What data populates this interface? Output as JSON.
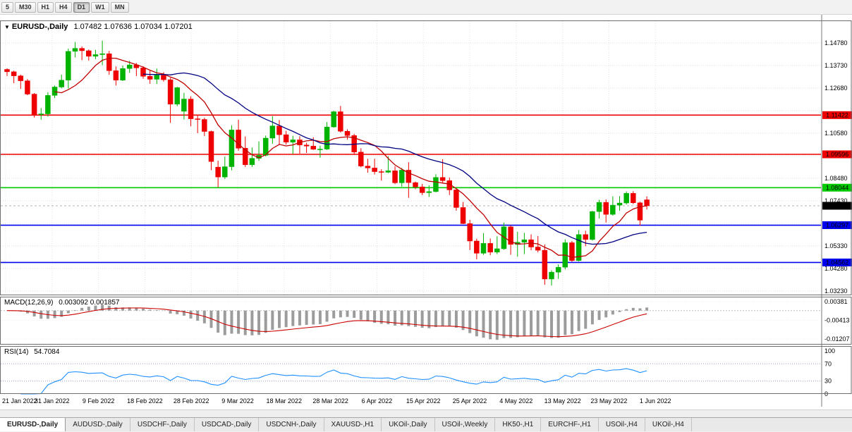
{
  "toolbar": {
    "timeframes": [
      {
        "label": "5",
        "active": false
      },
      {
        "label": "M30",
        "active": false
      },
      {
        "label": "H1",
        "active": false
      },
      {
        "label": "H4",
        "active": false
      },
      {
        "label": "D1",
        "active": true
      },
      {
        "label": "W1",
        "active": false
      },
      {
        "label": "MN",
        "active": false
      }
    ]
  },
  "chart": {
    "symbol": "EURUSD-,Daily",
    "open": "1.07482",
    "high": "1.07636",
    "low": "1.07034",
    "close": "1.07201"
  },
  "chart_data": {
    "type": "candlestick",
    "symbol": "EURUSD-,Daily",
    "up_color": "#00b300",
    "down_color": "#ee0000",
    "grid_top": 1.1478,
    "grid_step": 0.0105,
    "grid_lines": 12,
    "price_axis_ticks": [
      "1.14780",
      "1.13730",
      "1.12680",
      "1.10580",
      "1.08480",
      "1.07430",
      "1.05330",
      "1.04280",
      "1.03230"
    ],
    "hlines": [
      {
        "price": 1.11422,
        "label": "1.11422",
        "color": "#ee0000"
      },
      {
        "price": 1.09596,
        "label": "1.09596",
        "color": "#ee0000"
      },
      {
        "price": 1.08044,
        "label": "1.08044",
        "color": "#00cc00"
      },
      {
        "price": 1.06297,
        "label": "1.06297",
        "color": "#0000ee"
      },
      {
        "price": 1.04562,
        "label": "1.04562",
        "color": "#0000ee"
      }
    ],
    "current_price": {
      "value": 1.07201,
      "label": "1.07201",
      "bg": "#000000"
    },
    "moving_averages": [
      {
        "period": 8,
        "color": "#c00000"
      },
      {
        "period": 21,
        "color": "#000080"
      }
    ],
    "x_labels": [
      "21 Jan 2022",
      "31 Jan 2022",
      "9 Feb 2022",
      "18 Feb 2022",
      "28 Feb 2022",
      "9 Mar 2022",
      "18 Mar 2022",
      "28 Mar 2022",
      "6 Apr 2022",
      "15 Apr 2022",
      "25 Apr 2022",
      "4 May 2022",
      "13 May 2022",
      "23 May 2022",
      "1 Jun 2022"
    ],
    "candles": [
      [
        1.1355,
        1.136,
        1.1324,
        1.1344
      ],
      [
        1.1344,
        1.1349,
        1.1291,
        1.1325
      ],
      [
        1.1325,
        1.1331,
        1.1264,
        1.1302
      ],
      [
        1.1302,
        1.131,
        1.1235,
        1.124
      ],
      [
        1.124,
        1.1245,
        1.1131,
        1.1145
      ],
      [
        1.1145,
        1.1175,
        1.1121,
        1.1148
      ],
      [
        1.1148,
        1.1248,
        1.1135,
        1.1234
      ],
      [
        1.1234,
        1.128,
        1.1222,
        1.1273
      ],
      [
        1.1273,
        1.1331,
        1.1267,
        1.1305
      ],
      [
        1.1305,
        1.1452,
        1.1266,
        1.1439
      ],
      [
        1.1439,
        1.1483,
        1.1411,
        1.1453
      ],
      [
        1.1453,
        1.1462,
        1.1398,
        1.1442
      ],
      [
        1.1442,
        1.1448,
        1.1396,
        1.1416
      ],
      [
        1.1416,
        1.1446,
        1.1403,
        1.1424
      ],
      [
        1.1424,
        1.1489,
        1.1375,
        1.1428
      ],
      [
        1.1428,
        1.1441,
        1.133,
        1.1349
      ],
      [
        1.1349,
        1.1369,
        1.128,
        1.1305
      ],
      [
        1.1305,
        1.1373,
        1.1301,
        1.1359
      ],
      [
        1.1359,
        1.1395,
        1.1339,
        1.1376
      ],
      [
        1.1376,
        1.1385,
        1.1324,
        1.1362
      ],
      [
        1.1362,
        1.137,
        1.1312,
        1.1323
      ],
      [
        1.1323,
        1.1349,
        1.1288,
        1.1309
      ],
      [
        1.1309,
        1.1359,
        1.1287,
        1.1328
      ],
      [
        1.1328,
        1.1342,
        1.1298,
        1.1307
      ],
      [
        1.1307,
        1.1316,
        1.1106,
        1.1193
      ],
      [
        1.1193,
        1.1274,
        1.1184,
        1.127
      ],
      [
        1.116,
        1.1246,
        1.1122,
        1.1217
      ],
      [
        1.1217,
        1.123,
        1.109,
        1.1125
      ],
      [
        1.1125,
        1.1145,
        1.1058,
        1.1122
      ],
      [
        1.1122,
        1.113,
        1.1045,
        1.1066
      ],
      [
        1.1066,
        1.107,
        1.0886,
        1.0926
      ],
      [
        1.09,
        1.093,
        1.0806,
        1.0854
      ],
      [
        1.0854,
        1.0949,
        1.0845,
        1.0902
      ],
      [
        1.0902,
        1.1095,
        1.0885,
        1.1073
      ],
      [
        1.1073,
        1.1121,
        1.0977,
        1.0988
      ],
      [
        1.0988,
        1.1043,
        1.0901,
        1.0911
      ],
      [
        1.0911,
        1.0991,
        1.0901,
        1.0941
      ],
      [
        1.0941,
        1.102,
        1.0929,
        1.0955
      ],
      [
        1.0955,
        1.1047,
        1.095,
        1.1035
      ],
      [
        1.1035,
        1.1137,
        1.1009,
        1.1092
      ],
      [
        1.1092,
        1.1119,
        1.1003,
        1.1051
      ],
      [
        1.1051,
        1.1069,
        1.1005,
        1.1016
      ],
      [
        1.1016,
        1.1046,
        1.0961,
        1.1027
      ],
      [
        1.1027,
        1.1044,
        1.0963,
        1.1003
      ],
      [
        1.1003,
        1.1014,
        1.0966,
        1.0998
      ],
      [
        1.0998,
        1.1039,
        1.098,
        1.0983
      ],
      [
        1.0983,
        1.1,
        1.0944,
        1.0984
      ],
      [
        1.0984,
        1.111,
        1.098,
        1.1087
      ],
      [
        1.1087,
        1.1162,
        1.1084,
        1.1158
      ],
      [
        1.1158,
        1.1185,
        1.1061,
        1.1067
      ],
      [
        1.1067,
        1.1076,
        1.1028,
        1.1047
      ],
      [
        1.1047,
        1.1055,
        1.096,
        1.097
      ],
      [
        1.097,
        1.0988,
        1.0899,
        1.0905
      ],
      [
        1.0905,
        1.0939,
        1.0874,
        1.0896
      ],
      [
        1.0896,
        1.0939,
        1.0866,
        1.0879
      ],
      [
        1.0879,
        1.089,
        1.0837,
        1.0876
      ],
      [
        1.0876,
        1.095,
        1.0872,
        1.0883
      ],
      [
        1.0883,
        1.0904,
        1.0821,
        1.0827
      ],
      [
        1.0827,
        1.0896,
        1.0809,
        1.0886
      ],
      [
        1.0886,
        1.0923,
        1.0757,
        1.0828
      ],
      [
        1.0828,
        1.0833,
        1.0797,
        1.0808
      ],
      [
        1.0808,
        1.0822,
        1.077,
        1.0781
      ],
      [
        1.0781,
        1.0815,
        1.0761,
        1.0786
      ],
      [
        1.0786,
        1.0867,
        1.0783,
        1.0852
      ],
      [
        1.0852,
        1.0937,
        1.0824,
        1.0837
      ],
      [
        1.0837,
        1.0852,
        1.077,
        1.0794
      ],
      [
        1.0794,
        1.0797,
        1.0697,
        1.0712
      ],
      [
        1.0712,
        1.0738,
        1.0635,
        1.0637
      ],
      [
        1.0637,
        1.0655,
        1.0514,
        1.0556
      ],
      [
        1.0556,
        1.0567,
        1.0471,
        1.0499
      ],
      [
        1.0499,
        1.0593,
        1.0492,
        1.0545
      ],
      [
        1.0545,
        1.0568,
        1.049,
        1.0504
      ],
      [
        1.0504,
        1.0578,
        1.0495,
        1.052
      ],
      [
        1.052,
        1.0642,
        1.0515,
        1.0622
      ],
      [
        1.0622,
        1.0629,
        1.0492,
        1.054
      ],
      [
        1.054,
        1.0599,
        1.0483,
        1.055
      ],
      [
        1.055,
        1.0594,
        1.0495,
        1.0562
      ],
      [
        1.0562,
        1.0587,
        1.0513,
        1.0528
      ],
      [
        1.0528,
        1.0579,
        1.0503,
        1.0513
      ],
      [
        1.0513,
        1.054,
        1.0352,
        1.0379
      ],
      [
        1.0379,
        1.042,
        1.0349,
        1.0411
      ],
      [
        1.0411,
        1.0447,
        1.038,
        1.0434
      ],
      [
        1.0434,
        1.0564,
        1.0424,
        1.0548
      ],
      [
        1.0548,
        1.0556,
        1.0459,
        1.0465
      ],
      [
        1.0465,
        1.0607,
        1.0461,
        1.0586
      ],
      [
        1.0586,
        1.0604,
        1.0532,
        1.0563
      ],
      [
        1.0563,
        1.0697,
        1.0558,
        1.0693
      ],
      [
        1.0693,
        1.0748,
        1.0661,
        1.0736
      ],
      [
        1.0736,
        1.075,
        1.0642,
        1.068
      ],
      [
        1.068,
        1.0764,
        1.0674,
        1.0723
      ],
      [
        1.0723,
        1.0765,
        1.0697,
        1.0733
      ],
      [
        1.0733,
        1.0787,
        1.0726,
        1.0778
      ],
      [
        1.0778,
        1.0788,
        1.0728,
        1.0734
      ],
      [
        1.0734,
        1.0739,
        1.0627,
        1.0653
      ],
      [
        1.0748,
        1.0764,
        1.0703,
        1.072
      ]
    ],
    "indicators": {
      "macd": {
        "title": "MACD(12,26,9)",
        "fast": 12,
        "slow": 26,
        "signal": 9,
        "main_value": "0.003092",
        "signal_value": "0.001857",
        "axis_labels": [
          "0.00381",
          "-0.00413",
          "-0.01207"
        ],
        "histogram_color": "#9c9c9c",
        "signal_color": "#cc0000"
      },
      "rsi": {
        "title": "RSI(14)",
        "period": 14,
        "value": "54.7084",
        "axis_labels": [
          "100",
          "70",
          "30",
          "0"
        ],
        "levels": [
          70,
          30
        ],
        "line_color": "#1e90ff"
      }
    }
  },
  "tabs": {
    "items": [
      {
        "label": "EURUSD-,Daily",
        "active": true
      },
      {
        "label": "AUDUSD-,Daily",
        "active": false
      },
      {
        "label": "USDCHF-,Daily",
        "active": false
      },
      {
        "label": "USDCAD-,Daily",
        "active": false
      },
      {
        "label": "USDCNH-,Daily",
        "active": false
      },
      {
        "label": "XAUUSD-,H1",
        "active": false
      },
      {
        "label": "UKOil-,Daily",
        "active": false
      },
      {
        "label": "USOil-,Weekly",
        "active": false
      },
      {
        "label": "HK50-,H1",
        "active": false
      },
      {
        "label": "EURCHF-,H1",
        "active": false
      },
      {
        "label": "USOil-,H4",
        "active": false
      },
      {
        "label": "UKOil-,H4",
        "active": false
      }
    ]
  }
}
